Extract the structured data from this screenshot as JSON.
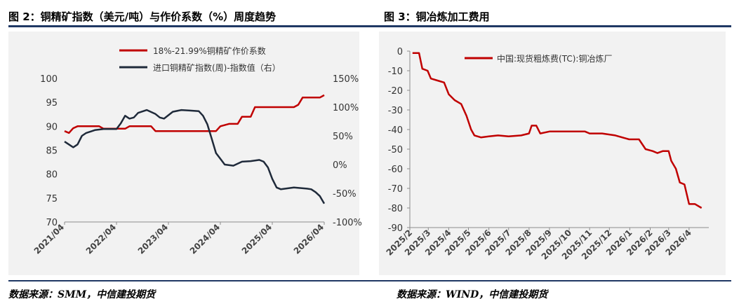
{
  "figures": {
    "left_title": "图 2：铜精矿指数（美元/吨）与作价系数（%）周度趋势",
    "right_title": "图 3：铜冶炼加工费用",
    "left_source": "数据来源：SMM，中信建投期货",
    "right_source": "数据来源：WIND，中信建投期货"
  },
  "colors": {
    "red": "#c00000",
    "navy": "#1f2a3a",
    "rule": "#1f3864",
    "panel": "#f2f2f2"
  },
  "chart_data": [
    {
      "type": "line",
      "title": "图 2：铜精矿指数（美元/吨）与作价系数（%）周度趋势",
      "x_ticks": [
        "2021/04",
        "2022/04",
        "2023/04",
        "2024/04",
        "2025/04",
        "2026/04"
      ],
      "xlim": [
        "2021/04",
        "2026/04"
      ],
      "y_left": {
        "ticks": [
          "70",
          "75",
          "80",
          "85",
          "90",
          "95",
          "100"
        ],
        "ylim": [
          70,
          100
        ]
      },
      "y_right": {
        "ticks": [
          "-100%",
          "-50%",
          "0%",
          "50%",
          "100%",
          "150%"
        ],
        "ylim": [
          -100,
          150
        ]
      },
      "legend_position": "top",
      "grid": false,
      "series": [
        {
          "name": "18%-21.99%铜精矿作价系数",
          "axis": "left",
          "color": "#c00000",
          "points": [
            [
              "2021-04",
              89.0
            ],
            [
              "2021-05",
              88.6
            ],
            [
              "2021-06",
              89.6
            ],
            [
              "2021-07",
              90.0
            ],
            [
              "2021-12",
              90.0
            ],
            [
              "2022-01",
              89.5
            ],
            [
              "2022-06",
              89.5
            ],
            [
              "2022-07",
              90.0
            ],
            [
              "2022-12",
              90.0
            ],
            [
              "2023-01",
              89.0
            ],
            [
              "2024-03",
              89.0
            ],
            [
              "2024-04",
              90.0
            ],
            [
              "2024-06",
              90.5
            ],
            [
              "2024-08",
              90.5
            ],
            [
              "2024-09",
              92.0
            ],
            [
              "2024-11",
              92.0
            ],
            [
              "2024-12",
              94.0
            ],
            [
              "2025-09",
              94.0
            ],
            [
              "2025-10",
              94.5
            ],
            [
              "2025-11",
              96.0
            ],
            [
              "2026-03",
              96.0
            ],
            [
              "2026-04",
              96.5
            ]
          ]
        },
        {
          "name": "进口铜精矿指数(周)-指数值（右）",
          "axis": "right",
          "color": "#1f2a3a",
          "points": [
            [
              "2021-04",
              40
            ],
            [
              "2021-05",
              35
            ],
            [
              "2021-06",
              30
            ],
            [
              "2021-07",
              35
            ],
            [
              "2021-08",
              50
            ],
            [
              "2021-09",
              55
            ],
            [
              "2021-11",
              60
            ],
            [
              "2022-01",
              62
            ],
            [
              "2022-04",
              62
            ],
            [
              "2022-05",
              72
            ],
            [
              "2022-06",
              85
            ],
            [
              "2022-07",
              80
            ],
            [
              "2022-08",
              82
            ],
            [
              "2022-09",
              90
            ],
            [
              "2022-11",
              95
            ],
            [
              "2023-01",
              88
            ],
            [
              "2023-02",
              82
            ],
            [
              "2023-03",
              80
            ],
            [
              "2023-05",
              92
            ],
            [
              "2023-07",
              95
            ],
            [
              "2023-09",
              94
            ],
            [
              "2023-11",
              93
            ],
            [
              "2023-12",
              85
            ],
            [
              "2024-01",
              70
            ],
            [
              "2024-02",
              45
            ],
            [
              "2024-03",
              20
            ],
            [
              "2024-04",
              10
            ],
            [
              "2024-05",
              0
            ],
            [
              "2024-07",
              -2
            ],
            [
              "2024-09",
              5
            ],
            [
              "2024-11",
              6
            ],
            [
              "2025-01",
              8
            ],
            [
              "2025-02",
              5
            ],
            [
              "2025-03",
              -5
            ],
            [
              "2025-04",
              -25
            ],
            [
              "2025-05",
              -40
            ],
            [
              "2025-06",
              -43
            ],
            [
              "2025-09",
              -40
            ],
            [
              "2025-12",
              -42
            ],
            [
              "2026-01",
              -43
            ],
            [
              "2026-02",
              -48
            ],
            [
              "2026-03",
              -55
            ],
            [
              "2026-04",
              -68
            ]
          ]
        }
      ]
    },
    {
      "type": "line",
      "title": "图 3：铜冶炼加工费用",
      "x_ticks": [
        "2025/2",
        "2025/3",
        "2025/4",
        "2025/5",
        "2025/6",
        "2025/7",
        "2025/8",
        "2025/9",
        "2025/10",
        "2025/11",
        "2025/12",
        "2026/1",
        "2026/2",
        "2026/3",
        "2026/4"
      ],
      "xlim": [
        "2025/2",
        "2026/4"
      ],
      "y": {
        "ticks": [
          "0",
          "-10",
          "-20",
          "-30",
          "-40",
          "-50",
          "-60",
          "-70",
          "-80",
          "-90"
        ],
        "ylim": [
          -90,
          0
        ]
      },
      "legend_position": "top",
      "grid": false,
      "series": [
        {
          "name": "中国:现货粗炼费(TC):铜冶炼厂",
          "color": "#c00000",
          "points": [
            [
              "2025-02-05",
              -1
            ],
            [
              "2025-02-15",
              -1
            ],
            [
              "2025-02-20",
              -9
            ],
            [
              "2025-02-28",
              -10
            ],
            [
              "2025-03-05",
              -14
            ],
            [
              "2025-03-15",
              -15
            ],
            [
              "2025-03-25",
              -16
            ],
            [
              "2025-04-01",
              -22
            ],
            [
              "2025-04-10",
              -25
            ],
            [
              "2025-04-20",
              -27
            ],
            [
              "2025-04-28",
              -33
            ],
            [
              "2025-05-05",
              -40
            ],
            [
              "2025-05-10",
              -43
            ],
            [
              "2025-05-20",
              -44
            ],
            [
              "2025-06-01",
              -43.5
            ],
            [
              "2025-06-15",
              -43
            ],
            [
              "2025-07-01",
              -43.5
            ],
            [
              "2025-07-20",
              -43
            ],
            [
              "2025-08-01",
              -42
            ],
            [
              "2025-08-05",
              -38
            ],
            [
              "2025-08-12",
              -38
            ],
            [
              "2025-08-18",
              -42
            ],
            [
              "2025-09-01",
              -41
            ],
            [
              "2025-10-01",
              -41
            ],
            [
              "2025-10-25",
              -41
            ],
            [
              "2025-11-01",
              -42
            ],
            [
              "2025-11-20",
              -42
            ],
            [
              "2025-12-10",
              -43
            ],
            [
              "2025-12-31",
              -45
            ],
            [
              "2026-01-15",
              -45
            ],
            [
              "2026-01-25",
              -50
            ],
            [
              "2026-02-05",
              -51
            ],
            [
              "2026-02-12",
              -52
            ],
            [
              "2026-02-20",
              -51
            ],
            [
              "2026-03-01",
              -51
            ],
            [
              "2026-03-05",
              -56
            ],
            [
              "2026-03-12",
              -60
            ],
            [
              "2026-03-18",
              -67
            ],
            [
              "2026-03-25",
              -68
            ],
            [
              "2026-04-01",
              -78
            ],
            [
              "2026-04-10",
              -78
            ],
            [
              "2026-04-20",
              -80
            ]
          ]
        }
      ]
    }
  ]
}
